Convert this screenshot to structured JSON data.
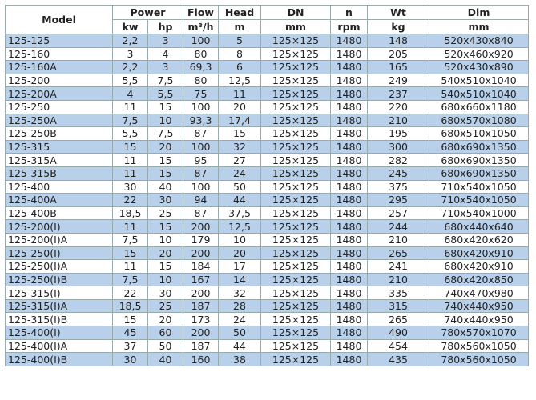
{
  "header": {
    "model": "Model",
    "power": "Power",
    "flow": "Flow",
    "head": "Head",
    "dn": "DN",
    "n": "n",
    "wt": "Wt",
    "dim": "Dim",
    "units": [
      "kw",
      "hp",
      "m³/h",
      "m",
      "mm",
      "rpm",
      "kg",
      "mm"
    ]
  },
  "row_color": "#b9d0ea",
  "rows": [
    [
      "125-125",
      "2,2",
      "3",
      "100",
      "5",
      "125×125",
      "1480",
      "148",
      "520x430x840"
    ],
    [
      "125-160",
      "3",
      "4",
      "80",
      "8",
      "125×125",
      "1480",
      "205",
      "520x460x920"
    ],
    [
      "125-160A",
      "2,2",
      "3",
      "69,3",
      "6",
      "125×125",
      "1480",
      "165",
      "520x430x890"
    ],
    [
      "125-200",
      "5,5",
      "7,5",
      "80",
      "12,5",
      "125×125",
      "1480",
      "249",
      "540x510x1040"
    ],
    [
      "125-200A",
      "4",
      "5,5",
      "75",
      "11",
      "125×125",
      "1480",
      "237",
      "540x510x1040"
    ],
    [
      "125-250",
      "11",
      "15",
      "100",
      "20",
      "125×125",
      "1480",
      "220",
      "680x660x1180"
    ],
    [
      "125-250A",
      "7,5",
      "10",
      "93,3",
      "17,4",
      "125×125",
      "1480",
      "210",
      "680x570x1080"
    ],
    [
      "125-250B",
      "5,5",
      "7,5",
      "87",
      "15",
      "125×125",
      "1480",
      "195",
      "680x510x1050"
    ],
    [
      "125-315",
      "15",
      "20",
      "100",
      "32",
      "125×125",
      "1480",
      "300",
      "680x690x1350"
    ],
    [
      "125-315A",
      "11",
      "15",
      "95",
      "27",
      "125×125",
      "1480",
      "282",
      "680x690x1350"
    ],
    [
      "125-315B",
      "11",
      "15",
      "87",
      "24",
      "125×125",
      "1480",
      "245",
      "680x690x1350"
    ],
    [
      "125-400",
      "30",
      "40",
      "100",
      "50",
      "125×125",
      "1480",
      "375",
      "710x540x1050"
    ],
    [
      "125-400A",
      "22",
      "30",
      "94",
      "44",
      "125×125",
      "1480",
      "295",
      "710x540x1050"
    ],
    [
      "125-400B",
      "18,5",
      "25",
      "87",
      "37,5",
      "125×125",
      "1480",
      "257",
      "710x540x1000"
    ],
    [
      "125-200(I)",
      "11",
      "15",
      "200",
      "12,5",
      "125×125",
      "1480",
      "244",
      "680x440x640"
    ],
    [
      "125-200(I)A",
      "7,5",
      "10",
      "179",
      "10",
      "125×125",
      "1480",
      "210",
      "680x420x620"
    ],
    [
      "125-250(I)",
      "15",
      "20",
      "200",
      "20",
      "125×125",
      "1480",
      "265",
      "680x420x910"
    ],
    [
      "125-250(I)A",
      "11",
      "15",
      "184",
      "17",
      "125×125",
      "1480",
      "241",
      "680x420x910"
    ],
    [
      "125-250(I)B",
      "7,5",
      "10",
      "167",
      "14",
      "125×125",
      "1480",
      "210",
      "680x420x850"
    ],
    [
      "125-315(I)",
      "22",
      "30",
      "200",
      "32",
      "125×125",
      "1480",
      "335",
      "740x470x980"
    ],
    [
      "125-315(I)A",
      "18,5",
      "25",
      "187",
      "28",
      "125×125",
      "1480",
      "315",
      "740x440x950"
    ],
    [
      "125-315(I)B",
      "15",
      "20",
      "173",
      "24",
      "125×125",
      "1480",
      "265",
      "740x440x950"
    ],
    [
      "125-400(I)",
      "45",
      "60",
      "200",
      "50",
      "125×125",
      "1480",
      "490",
      "780x570x1070"
    ],
    [
      "125-400(I)A",
      "37",
      "50",
      "187",
      "44",
      "125×125",
      "1480",
      "454",
      "780x560x1050"
    ],
    [
      "125-400(I)B",
      "30",
      "40",
      "160",
      "38",
      "125×125",
      "1480",
      "435",
      "780x560x1050"
    ]
  ]
}
